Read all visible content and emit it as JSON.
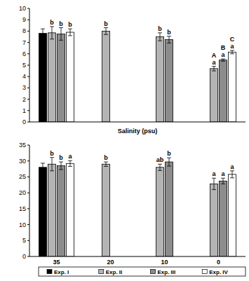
{
  "chart_data": [
    {
      "type": "bar",
      "x_label": "Salinity (psu)",
      "categories": [
        "35",
        "20",
        "10",
        "0"
      ],
      "ylim": [
        0,
        10
      ],
      "yticks": [
        0,
        1,
        2,
        3,
        4,
        5,
        6,
        7,
        8,
        9,
        10
      ],
      "tick_labels": "y",
      "series": [
        {
          "name": "Exp. I",
          "color": "#000000",
          "values": [
            7.8,
            null,
            null,
            null
          ],
          "errors": [
            0.4,
            null,
            null,
            null
          ]
        },
        {
          "name": "Exp. II",
          "color": "#b4b4b4",
          "values": [
            7.85,
            8.0,
            7.5,
            4.7
          ],
          "errors": [
            0.55,
            0.3,
            0.35,
            0.2
          ],
          "letters": [
            "b",
            "b",
            "b",
            "a"
          ],
          "group_letters": [
            null,
            null,
            null,
            "A"
          ]
        },
        {
          "name": "Exp. III",
          "color": "#8c8c8c",
          "values": [
            7.75,
            null,
            7.25,
            5.45
          ],
          "errors": [
            0.55,
            null,
            0.3,
            0.1
          ],
          "letters": [
            "b",
            null,
            "b",
            "a"
          ],
          "group_letters": [
            null,
            null,
            null,
            "B"
          ]
        },
        {
          "name": "Exp. IV",
          "color": "#ffffff",
          "values": [
            7.9,
            null,
            null,
            6.15
          ],
          "errors": [
            0.3,
            null,
            null,
            0.15
          ],
          "letters": [
            "b",
            null,
            null,
            "a"
          ],
          "group_letters": [
            null,
            null,
            null,
            "C"
          ]
        }
      ]
    },
    {
      "type": "bar",
      "categories": [
        "35",
        "20",
        "10",
        "0"
      ],
      "ylim": [
        0,
        35
      ],
      "yticks": [
        0,
        5,
        10,
        15,
        20,
        25,
        30,
        35
      ],
      "legend": "bottom",
      "series": [
        {
          "name": "Exp. I",
          "color": "#000000",
          "values": [
            28,
            null,
            null,
            null
          ],
          "errors": [
            1.3,
            null,
            null,
            null
          ]
        },
        {
          "name": "Exp. II",
          "color": "#b4b4b4",
          "values": [
            29,
            29,
            28,
            22.8
          ],
          "errors": [
            2.1,
            0.7,
            1.0,
            1.8
          ],
          "letters": [
            "b",
            "b",
            "ab",
            "a"
          ]
        },
        {
          "name": "Exp. III",
          "color": "#8c8c8c",
          "values": [
            28.5,
            null,
            29.7,
            23.7
          ],
          "errors": [
            1.2,
            null,
            1.3,
            0.9
          ],
          "letters": [
            "b",
            null,
            "b",
            "a"
          ]
        },
        {
          "name": "Exp. IV",
          "color": "#ffffff",
          "values": [
            29.2,
            null,
            null,
            25.8
          ],
          "errors": [
            0.9,
            null,
            null,
            1.1
          ],
          "letters": [
            "a",
            null,
            null,
            "a"
          ]
        }
      ]
    }
  ]
}
